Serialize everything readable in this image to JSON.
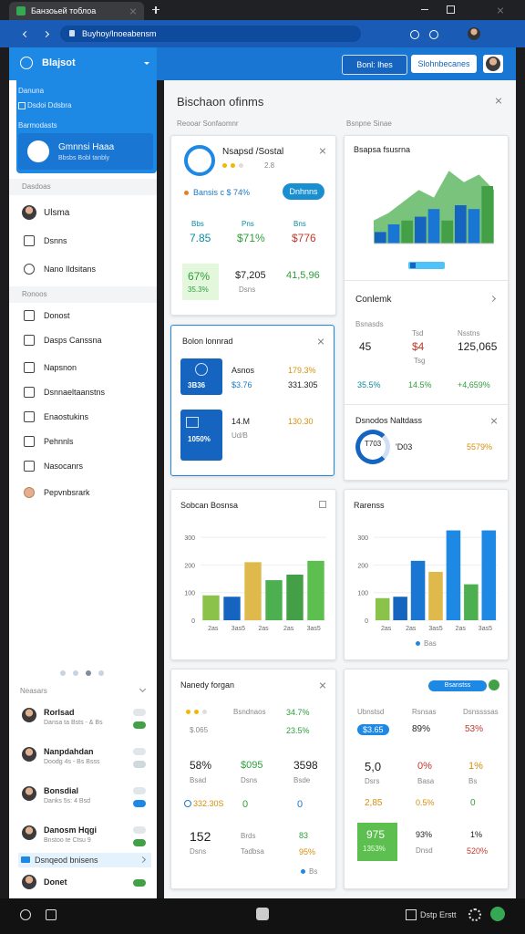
{
  "browser": {
    "tab": "Банзоьей тоблоа",
    "url": "Buyhoy/lnoeabensm"
  },
  "sidebar": {
    "title": "Blajsot",
    "top_items": [
      "Danuna",
      "Dsdoi Ddsbra",
      "Barmodasts"
    ],
    "profile": {
      "name": "Gmnnsi Haaa",
      "sub": "Bbsbs Bobl tanbly"
    },
    "section_a": "Dasdoas",
    "items_a": [
      "Ulsma",
      "Dsnns",
      "Nano Ildsitans"
    ],
    "section_b": "Ronoos",
    "items_b": [
      "Donost",
      "Dasps Canssna",
      "Napsnon",
      "Dsnnaeltaanstns",
      "Enaostukins",
      "Pehnnls",
      "Nasocanrs",
      "Pepvnbsrark"
    ],
    "people_title": "Neasars",
    "people": [
      {
        "name": "Rorlsad",
        "sub": "Dansa ta Bsts - & Bs"
      },
      {
        "name": "Nanpdahdan",
        "sub": "Doodg 4s - Bs Bsss"
      },
      {
        "name": "Bonsdial",
        "sub": "Danks 5s: 4 Bsd"
      },
      {
        "name": "Danosm Hqgi",
        "sub": "Bnstoo te Ctsu 9"
      }
    ],
    "highlight": "Dsnqeod bnisens",
    "last": "Donet"
  },
  "header": {
    "buttons": [
      "Bonl: lhes",
      "Slohnbecanes"
    ]
  },
  "panel": {
    "title": "Bischaon ofinms",
    "left_caption": "Reooar Sonfaomnr",
    "right_caption": "Bsnpne Sinae"
  },
  "cards": {
    "c1": {
      "title": "Nsapsd /Sostal",
      "rating": "2.8",
      "note": "Bansis c $ 74%",
      "button": "Dnhnns",
      "stats": [
        {
          "label": "Bbs",
          "value": "7.85"
        },
        {
          "label": "Pns",
          "value": "$71%"
        },
        {
          "label": "Bns",
          "value": "$776"
        }
      ],
      "bottom": [
        {
          "value": "67%",
          "sub": "35.3%"
        },
        {
          "value": "$7,205",
          "sub": "Dsns"
        },
        {
          "value": "41,5,96"
        }
      ]
    },
    "c2": {
      "title": "Bsapsa fsusrna",
      "chart": {
        "ylim": [
          0,
          100
        ],
        "area": [
          30,
          40,
          55,
          70,
          60,
          95,
          80,
          90,
          70
        ],
        "area_color": "#4caf50",
        "bars": [
          15,
          25,
          30,
          35,
          45,
          30,
          50,
          45,
          75
        ],
        "bar_colors": [
          "#1565c0",
          "#1976d2",
          "#43a047",
          "#1565c0",
          "#1976d2",
          "#43a047",
          "#1565c0",
          "#1976d2",
          "#43a047"
        ]
      },
      "section": "Conlemk",
      "labels": [
        "Bsnasds",
        "Tsd",
        "Nsstns"
      ],
      "values": [
        "45",
        "$4",
        "125,065"
      ],
      "sub": "Tsg",
      "changes": [
        "35.5%",
        "14.5%",
        "+4,659%"
      ],
      "donut_title": "Dsnodos Naltdass",
      "donut_label": "T703",
      "donut_values": [
        "'D03",
        "5579%"
      ]
    },
    "c3": {
      "title": "Bolon lonnrad",
      "rows": [
        {
          "badge": "3B36",
          "label": "Asnos",
          "sub": "$3.76",
          "v1": "179.3%",
          "v2": "331.305"
        },
        {
          "badge": "1050%",
          "label": "14.M",
          "sub": "Ud/B",
          "v1": "130.30"
        }
      ]
    },
    "c4": {
      "title": "Sobcan Bosnsa",
      "chart": {
        "ylim": [
          0,
          330
        ],
        "yticks": [
          0,
          100,
          200,
          300
        ],
        "values": [
          90,
          85,
          210,
          145,
          165,
          215
        ],
        "colors": [
          "#8bc34a",
          "#1565c0",
          "#e0b94c",
          "#4caf50",
          "#43a047",
          "#5cbf4f"
        ],
        "x_labels": [
          "2as",
          "3as5",
          "2as",
          "2as",
          "3as5"
        ]
      }
    },
    "c5": {
      "title": "Rarenss",
      "chart": {
        "ylim": [
          0,
          330
        ],
        "yticks": [
          0,
          100,
          200,
          300
        ],
        "values": [
          80,
          85,
          215,
          175,
          325,
          130,
          325
        ],
        "colors": [
          "#8bc34a",
          "#1565c0",
          "#1976d2",
          "#e0b94c",
          "#1e88e5",
          "#4caf50",
          "#1e88e5"
        ],
        "x_labels": [
          "2as",
          "2as",
          "3as5",
          "2as",
          "3as5"
        ]
      },
      "legend": "Bas"
    },
    "c6": {
      "title": "Nanedy forgan",
      "r1": [
        "Bsndnaos",
        "34.7%"
      ],
      "r2": [
        "$.065",
        "23.5%"
      ],
      "r3": [
        "58%",
        "$095",
        "3598"
      ],
      "r3sub": [
        "Bsad",
        "Dsns",
        "Bsde"
      ],
      "r4": [
        "332.30S",
        "0",
        "0"
      ],
      "r5": [
        "152",
        "Brds",
        "83"
      ],
      "r5sub": [
        "Dsns",
        "Tadbsa",
        "95%"
      ],
      "foot": "Bs"
    },
    "c7": {
      "pill": "Bsanstss",
      "labels": [
        "Ubnstsd",
        "Rsnsas",
        "Dsnssssas"
      ],
      "r1": [
        "$3.65",
        "89%",
        "53%"
      ],
      "r2": [
        "5,0",
        "0%",
        "1%"
      ],
      "r2sub": [
        "Dsrs",
        "Basa",
        "Bs"
      ],
      "r3": [
        "2,85",
        "0.5%",
        "0"
      ],
      "box": [
        "975",
        "1353%"
      ],
      "r4": [
        "93%",
        "1%"
      ],
      "r4sub": [
        "Dnsd",
        "520%"
      ]
    }
  },
  "taskbar": {
    "label": "Dstp Erstt"
  }
}
